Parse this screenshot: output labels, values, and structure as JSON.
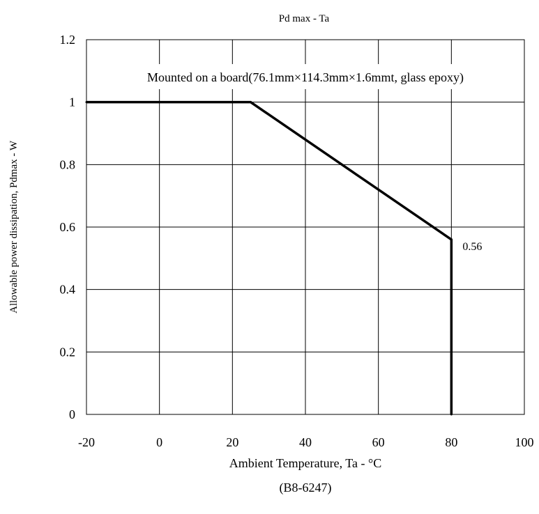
{
  "chart_data": {
    "type": "line",
    "title": "Pd max - Ta",
    "xlabel": "Ambient Temperature, Ta - °C",
    "ylabel": "Allowable power dissipation, Pdmax - W",
    "xlim": [
      -20,
      100
    ],
    "ylim": [
      0,
      1.2
    ],
    "x_ticks": [
      "-20",
      "0",
      "20",
      "40",
      "60",
      "80",
      "100"
    ],
    "y_ticks": [
      "0",
      "0.2",
      "0.4",
      "0.6",
      "0.8",
      "1",
      "1.2"
    ],
    "grid": true,
    "series": [
      {
        "x": [
          -20,
          25,
          80,
          80
        ],
        "y": [
          1.0,
          1.0,
          0.56,
          0
        ]
      }
    ],
    "annotations": [
      {
        "text": "Mounted on a board(76.1mm×114.3mm×1.6mmt, glass epoxy)"
      },
      {
        "text": "0.56",
        "x": 80,
        "y": 0.56
      }
    ],
    "code": "(B8-6247)"
  }
}
